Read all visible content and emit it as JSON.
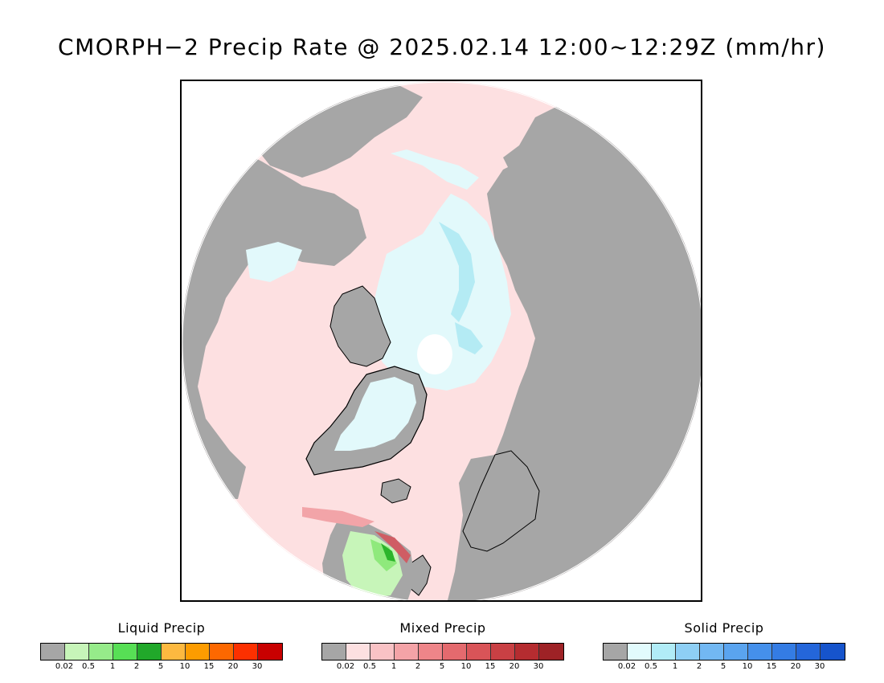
{
  "title": "CMORPH−2 Precip Rate @ 2025.02.14 12:00~12:29Z (mm/hr)",
  "map": {
    "colors": {
      "land": "#a6a6a6",
      "ocean_mixed": "#fde0e1",
      "solid_light": "#e2f9fb",
      "solid_med": "#b4ebf4",
      "liquid_light": "#c7f5b9",
      "liquid_med": "#8fe97c",
      "liquid_dark": "#2bb52b",
      "mixed_med": "#f2a4a8",
      "mixed_dark": "#d65058",
      "coast": "#000000"
    }
  },
  "legends": [
    {
      "title": "Liquid Precip",
      "colors": [
        "#a6a6a6",
        "#c7f5b9",
        "#96eb8a",
        "#57df55",
        "#21a82a",
        "#fdb940",
        "#fd9c00",
        "#fd6800",
        "#fc3000",
        "#c80000"
      ],
      "ticks": [
        "0.02",
        "0.5",
        "1",
        "2",
        "5",
        "10",
        "15",
        "20",
        "30"
      ]
    },
    {
      "title": "Mixed Precip",
      "colors": [
        "#a6a6a6",
        "#fde0e1",
        "#f9c2c5",
        "#f4a3a7",
        "#ee8589",
        "#e46a6e",
        "#d95458",
        "#c94044",
        "#b52c30",
        "#9e2226"
      ],
      "ticks": [
        "0.02",
        "0.5",
        "1",
        "2",
        "5",
        "10",
        "15",
        "20",
        "30"
      ]
    },
    {
      "title": "Solid Precip",
      "colors": [
        "#a6a6a6",
        "#e2fbfd",
        "#b1ecf7",
        "#8ecff5",
        "#72b8f3",
        "#5aa4ef",
        "#4590eb",
        "#347ce4",
        "#2466da",
        "#1654cc"
      ],
      "ticks": [
        "0.02",
        "0.5",
        "1",
        "2",
        "5",
        "10",
        "15",
        "20",
        "30"
      ]
    }
  ]
}
